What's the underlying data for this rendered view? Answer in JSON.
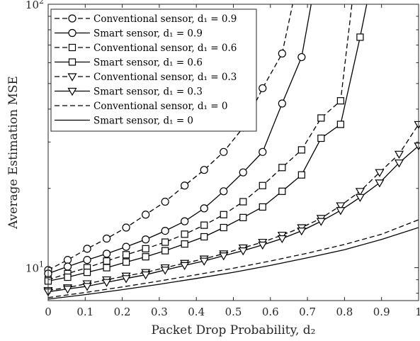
{
  "chart_data": {
    "type": "line",
    "title": "",
    "xlabel": "Packet Drop Probability, d₂",
    "ylabel": "Average Estimation MSE",
    "xlim": [
      0,
      1
    ],
    "ylim": [
      7.5,
      100
    ],
    "yscale": "log",
    "xticks": [
      "0",
      "0.1",
      "0.2",
      "0.3",
      "0.4",
      "0.5",
      "0.6",
      "0.7",
      "0.8",
      "0.9",
      "1"
    ],
    "yticks": [
      {
        "value": 10,
        "base": "10",
        "exp": "1"
      },
      {
        "value": 100,
        "base": "10",
        "exp": "2"
      }
    ],
    "grid": false,
    "legend_position": "top-left",
    "series": [
      {
        "name": "Conventional sensor, d₁ = 0.9",
        "dash": "dashed",
        "marker": "circle",
        "x": [
          0,
          0.0526,
          0.1053,
          0.1579,
          0.2105,
          0.2632,
          0.3158,
          0.3684,
          0.4211,
          0.4737,
          0.5263,
          0.5789,
          0.6316,
          0.66
        ],
        "y": [
          9.8,
          10.7,
          11.8,
          12.9,
          14.2,
          15.9,
          17.8,
          20.5,
          23.5,
          27.5,
          34,
          48,
          65,
          100
        ]
      },
      {
        "name": "Smart sensor, d₁ = 0.9",
        "dash": "solid",
        "marker": "circle",
        "x": [
          0,
          0.0526,
          0.1053,
          0.1579,
          0.2105,
          0.2632,
          0.3158,
          0.3684,
          0.4211,
          0.4737,
          0.5263,
          0.5789,
          0.6316,
          0.6842,
          0.71
        ],
        "y": [
          9.5,
          10.1,
          10.7,
          11.3,
          12,
          12.8,
          13.8,
          15,
          16.8,
          19.5,
          23,
          27.5,
          42,
          63,
          100
        ]
      },
      {
        "name": "Conventional sensor, d₁ = 0.6",
        "dash": "dashed",
        "marker": "square",
        "x": [
          0,
          0.0526,
          0.1053,
          0.1579,
          0.2105,
          0.2632,
          0.3158,
          0.3684,
          0.4211,
          0.4737,
          0.5263,
          0.5789,
          0.6316,
          0.6842,
          0.7368,
          0.7895,
          0.82
        ],
        "y": [
          9,
          9.5,
          10,
          10.6,
          11.2,
          11.8,
          12.5,
          13.4,
          14.5,
          15.9,
          17.8,
          20.5,
          24,
          28,
          37,
          43,
          100
        ]
      },
      {
        "name": "Smart sensor, d₁ = 0.6",
        "dash": "solid",
        "marker": "square",
        "x": [
          0,
          0.0526,
          0.1053,
          0.1579,
          0.2105,
          0.2632,
          0.3158,
          0.3684,
          0.4211,
          0.4737,
          0.5263,
          0.5789,
          0.6316,
          0.6842,
          0.7368,
          0.7895,
          0.8421,
          0.86
        ],
        "y": [
          8.9,
          9.2,
          9.6,
          10,
          10.5,
          11,
          11.6,
          12.3,
          13.1,
          14.2,
          15.5,
          17,
          19.5,
          22.5,
          31,
          35,
          75,
          100
        ]
      },
      {
        "name": "Conventional sensor, d₁ = 0.3",
        "dash": "dashed",
        "marker": "triangle-down",
        "x": [
          0,
          0.0526,
          0.1053,
          0.1579,
          0.2105,
          0.2632,
          0.3158,
          0.3684,
          0.4211,
          0.4737,
          0.5263,
          0.5789,
          0.6316,
          0.6842,
          0.7368,
          0.7895,
          0.8421,
          0.8947,
          0.9474,
          1
        ],
        "y": [
          8.2,
          8.4,
          8.7,
          9,
          9.3,
          9.6,
          10,
          10.4,
          10.8,
          11.3,
          11.9,
          12.5,
          13.3,
          14.2,
          15.4,
          17.2,
          19.5,
          23,
          27,
          35
        ]
      },
      {
        "name": "Smart sensor, d₁ = 0.3",
        "dash": "solid",
        "marker": "triangle-down",
        "x": [
          0,
          0.0526,
          0.1053,
          0.1579,
          0.2105,
          0.2632,
          0.3158,
          0.3684,
          0.4211,
          0.4737,
          0.5263,
          0.5789,
          0.6316,
          0.6842,
          0.7368,
          0.7895,
          0.8421,
          0.8947,
          0.9474,
          1
        ],
        "y": [
          8.1,
          8.3,
          8.5,
          8.8,
          9.1,
          9.4,
          9.8,
          10.2,
          10.6,
          11.1,
          11.6,
          12.2,
          12.9,
          13.8,
          15,
          16.5,
          18.5,
          21,
          25,
          29
        ]
      },
      {
        "name": "Conventional sensor, d₁ = 0",
        "dash": "dashed",
        "marker": "none",
        "x": [
          0,
          0.1,
          0.2,
          0.3,
          0.4,
          0.5,
          0.6,
          0.7,
          0.8,
          0.9,
          1
        ],
        "y": [
          7.7,
          8.05,
          8.45,
          8.9,
          9.4,
          9.95,
          10.6,
          11.35,
          12.25,
          13.4,
          15.2
        ]
      },
      {
        "name": "Smart sensor, d₁ = 0",
        "dash": "solid",
        "marker": "none",
        "x": [
          0,
          0.1,
          0.2,
          0.3,
          0.4,
          0.5,
          0.6,
          0.7,
          0.8,
          0.9,
          1
        ],
        "y": [
          7.6,
          7.9,
          8.25,
          8.65,
          9.1,
          9.6,
          10.2,
          10.9,
          11.7,
          12.8,
          14.2
        ]
      }
    ]
  }
}
